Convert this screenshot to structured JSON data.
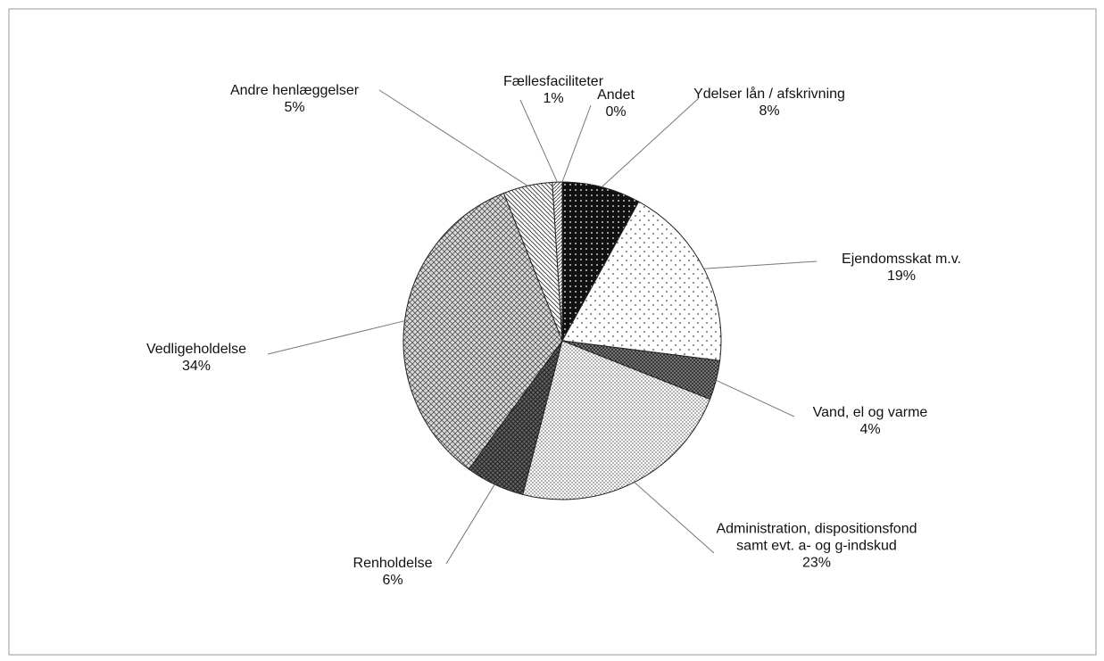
{
  "chart_data": {
    "type": "pie",
    "categories": [
      "Ydelser lån / afskrivning",
      "Ejendomsskat m.v.",
      "Vand, el og varme",
      "Administration, dispositionsfond samt evt. a- og g-indskud",
      "Renholdelse",
      "Vedligeholdelse",
      "Andre henlæggelser",
      "Fællesfaciliteter",
      "Andet"
    ],
    "values": [
      8,
      19,
      4,
      23,
      6,
      34,
      5,
      1,
      0
    ],
    "value_labels": [
      "8%",
      "19%",
      "4%",
      "23%",
      "6%",
      "34%",
      "5%",
      "1%",
      "0%"
    ]
  }
}
